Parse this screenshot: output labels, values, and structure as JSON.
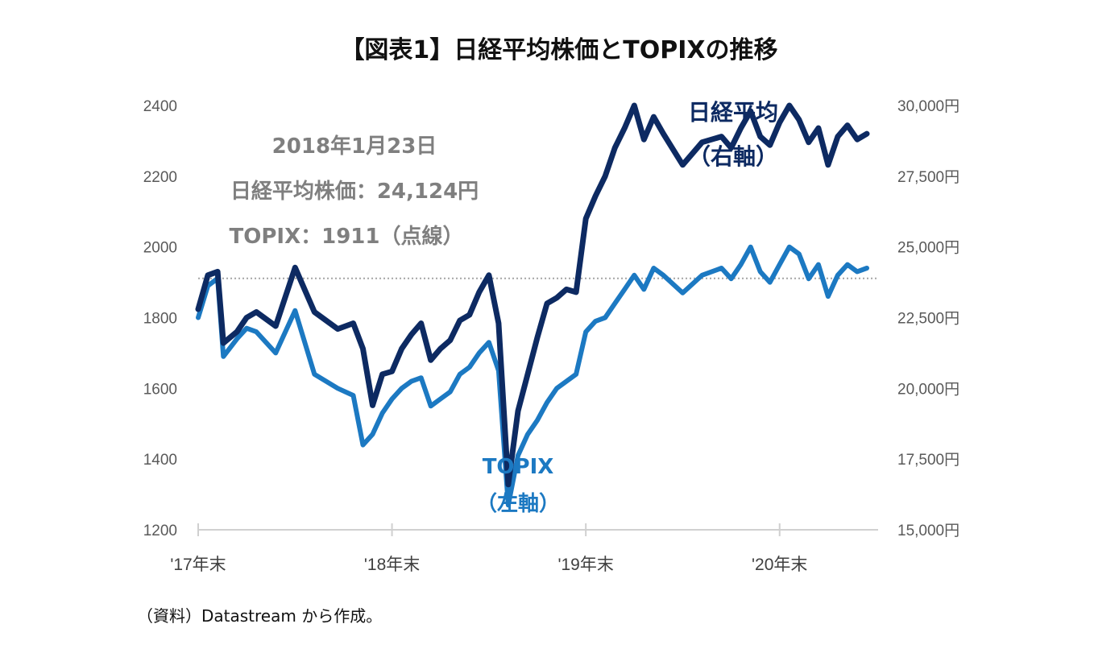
{
  "chart_data": {
    "type": "line",
    "title": "【図表1】日経平均株価とTOPIXの推移",
    "x_ticks": [
      "'17年末",
      "'18年末",
      "'19年末",
      "'20年末"
    ],
    "y_left": {
      "ticks": [
        "1200",
        "1400",
        "1600",
        "1800",
        "2000",
        "2200",
        "2400"
      ],
      "ylim": [
        1200,
        2400
      ]
    },
    "y_right": {
      "ticks": [
        "15,000円",
        "17,500円",
        "20,000円",
        "22,500円",
        "25,000円",
        "27,500円",
        "30,000円"
      ],
      "ylim": [
        15000,
        30000
      ]
    },
    "reference_line": {
      "left_value": 1911,
      "right_value": 24124,
      "style": "dotted"
    },
    "annotation": [
      "2018年1月23日",
      "日経平均株価：24,124円",
      "TOPIX：1911（点線）"
    ],
    "series_labels": {
      "nikkei": [
        "日経平均",
        "（右軸）"
      ],
      "topix": [
        "TOPIX",
        "（左軸）"
      ]
    },
    "series": [
      {
        "name": "日経平均",
        "axis": "right",
        "color": "#0d2a62",
        "x": [
          0,
          0.05,
          0.1,
          0.13,
          0.2,
          0.25,
          0.3,
          0.4,
          0.5,
          0.6,
          0.72,
          0.8,
          0.85,
          0.9,
          0.95,
          1.0,
          1.05,
          1.1,
          1.15,
          1.2,
          1.25,
          1.3,
          1.35,
          1.4,
          1.45,
          1.5,
          1.55,
          1.6,
          1.65,
          1.7,
          1.75,
          1.8,
          1.85,
          1.9,
          1.95,
          2.0,
          2.05,
          2.1,
          2.15,
          2.2,
          2.25,
          2.3,
          2.35,
          2.4,
          2.5,
          2.6,
          2.7,
          2.75,
          2.8,
          2.85,
          2.9,
          2.95,
          3.0,
          3.05,
          3.1,
          3.15,
          3.2,
          3.25,
          3.3,
          3.35,
          3.4,
          3.45
        ],
        "y": [
          22800,
          24000,
          24124,
          21600,
          22000,
          22500,
          22700,
          22200,
          24270,
          22700,
          22100,
          22300,
          21400,
          19400,
          20500,
          20600,
          21400,
          21900,
          22300,
          21000,
          21400,
          21700,
          22400,
          22600,
          23400,
          24000,
          22300,
          16600,
          19200,
          20500,
          21800,
          23000,
          23200,
          23500,
          23400,
          26000,
          26800,
          27500,
          28500,
          29200,
          30000,
          28800,
          29600,
          29000,
          27900,
          28700,
          28900,
          28500,
          29200,
          29800,
          28900,
          28600,
          29400,
          30000,
          29500,
          28700,
          29200,
          27900,
          28900,
          29300,
          28800,
          29000
        ]
      },
      {
        "name": "TOPIX",
        "axis": "left",
        "color": "#1c79c2",
        "x": [
          0,
          0.05,
          0.1,
          0.13,
          0.2,
          0.25,
          0.3,
          0.4,
          0.5,
          0.6,
          0.72,
          0.8,
          0.85,
          0.9,
          0.95,
          1.0,
          1.05,
          1.1,
          1.15,
          1.2,
          1.25,
          1.3,
          1.35,
          1.4,
          1.45,
          1.5,
          1.55,
          1.6,
          1.65,
          1.7,
          1.75,
          1.8,
          1.85,
          1.9,
          1.95,
          2.0,
          2.05,
          2.1,
          2.15,
          2.2,
          2.25,
          2.3,
          2.35,
          2.4,
          2.5,
          2.6,
          2.7,
          2.75,
          2.8,
          2.85,
          2.9,
          2.95,
          3.0,
          3.05,
          3.1,
          3.15,
          3.2,
          3.25,
          3.3,
          3.35,
          3.4,
          3.45
        ],
        "y": [
          1800,
          1890,
          1911,
          1690,
          1740,
          1770,
          1760,
          1700,
          1820,
          1640,
          1600,
          1580,
          1440,
          1470,
          1530,
          1570,
          1600,
          1620,
          1630,
          1550,
          1570,
          1590,
          1640,
          1660,
          1700,
          1730,
          1650,
          1270,
          1410,
          1470,
          1510,
          1560,
          1600,
          1620,
          1640,
          1760,
          1790,
          1800,
          1840,
          1880,
          1920,
          1880,
          1940,
          1920,
          1870,
          1920,
          1940,
          1910,
          1950,
          2000,
          1930,
          1900,
          1950,
          2000,
          1980,
          1910,
          1950,
          1860,
          1920,
          1950,
          1930,
          1940
        ]
      }
    ],
    "xlim": [
      0,
      3.45
    ],
    "source_note": "（資料）Datastream から作成。"
  }
}
